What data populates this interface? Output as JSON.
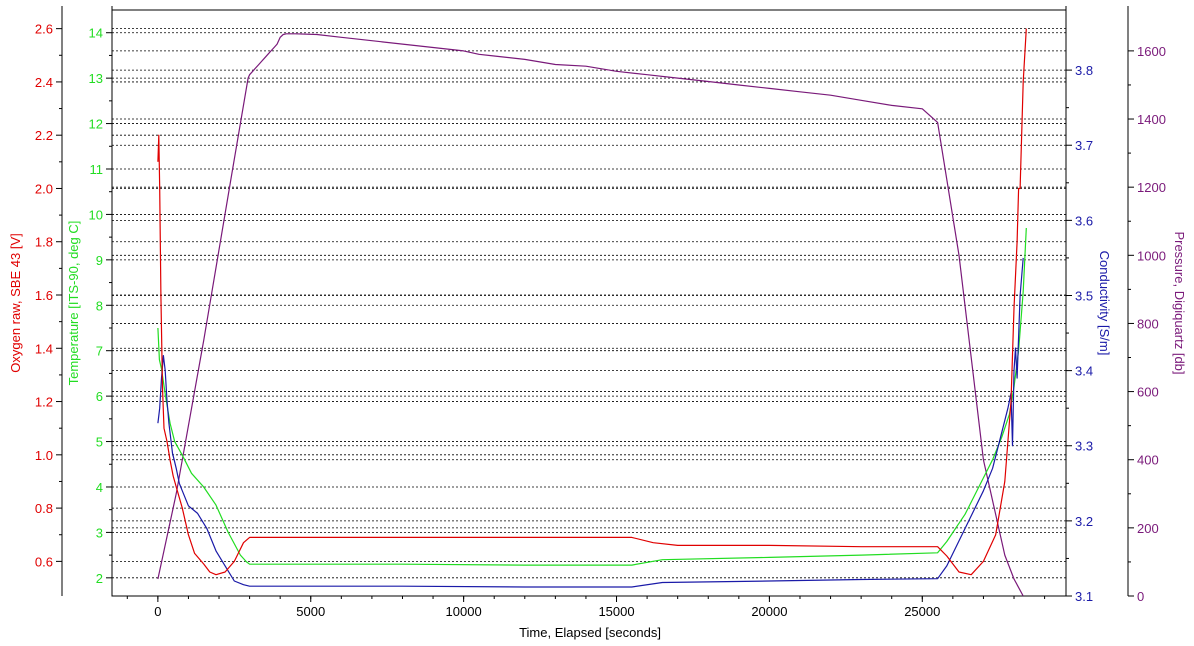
{
  "chart_data": {
    "type": "line",
    "xlabel": "Time, Elapsed [seconds]",
    "xlim": [
      -1500,
      29700
    ],
    "xticks": [
      0,
      5000,
      10000,
      15000,
      20000,
      25000
    ],
    "grid": "horizontal dashed",
    "axes": [
      {
        "id": "oxygen",
        "label": "Oxygen raw, SBE 43 [V]",
        "color": "#e00000",
        "side": "left",
        "lim": [
          0.47,
          2.67
        ],
        "ticks": [
          0.6,
          0.8,
          1.0,
          1.2,
          1.4,
          1.6,
          1.8,
          2.0,
          2.2,
          2.4,
          2.6
        ],
        "decimals": 1
      },
      {
        "id": "temp",
        "label": "Temperature [ITS-90, deg C]",
        "color": "#22dd22",
        "side": "left",
        "lim": [
          1.6,
          14.5
        ],
        "ticks": [
          2,
          3,
          4,
          5,
          6,
          7,
          8,
          9,
          10,
          11,
          12,
          13,
          14
        ],
        "decimals": 0
      },
      {
        "id": "cond",
        "label": "Conductivity [S/m]",
        "color": "#1a1aa8",
        "side": "right",
        "lim": [
          3.1,
          3.88
        ],
        "ticks": [
          3.1,
          3.2,
          3.3,
          3.4,
          3.5,
          3.6,
          3.7,
          3.8
        ],
        "decimals": 1
      },
      {
        "id": "pres",
        "label": "Pressure, Digiquartz [db]",
        "color": "#7a1a7a",
        "side": "right",
        "lim": [
          0,
          1720
        ],
        "ticks": [
          0,
          200,
          400,
          600,
          800,
          1000,
          1200,
          1400,
          1600
        ],
        "decimals": 0
      }
    ],
    "series": [
      {
        "axis": "pres",
        "color": "#7a1a7a",
        "x": [
          0,
          600,
          1500,
          2400,
          2950,
          3000,
          3100,
          3200,
          3300,
          3400,
          3500,
          3600,
          3700,
          3800,
          3900,
          4000,
          4100,
          4200,
          4300,
          4400,
          4500,
          5200,
          6000,
          7000,
          8000,
          9000,
          10000,
          10500,
          11000,
          12000,
          13000,
          14000,
          15000,
          16000,
          17000,
          18000,
          19000,
          20000,
          21000,
          22000,
          23000,
          24000,
          25000,
          25500,
          26200,
          27000,
          27700,
          28000,
          28300
        ],
        "y": [
          50,
          300,
          750,
          1230,
          1520,
          1530,
          1540,
          1550,
          1560,
          1570,
          1580,
          1590,
          1600,
          1610,
          1620,
          1640,
          1648,
          1650,
          1650,
          1650,
          1650,
          1648,
          1640,
          1630,
          1620,
          1610,
          1600,
          1590,
          1585,
          1575,
          1560,
          1555,
          1540,
          1530,
          1520,
          1510,
          1500,
          1490,
          1480,
          1470,
          1455,
          1440,
          1430,
          1390,
          1000,
          400,
          120,
          50,
          0
        ]
      },
      {
        "axis": "temp",
        "color": "#22dd22",
        "x": [
          0,
          50,
          120,
          250,
          400,
          550,
          800,
          1100,
          1500,
          1900,
          2300,
          2700,
          2900,
          3000,
          5000,
          8000,
          12000,
          15500,
          16500,
          20000,
          23000,
          25500,
          25800,
          26400,
          27000,
          27300,
          27600,
          27850,
          28000,
          28150,
          28300,
          28400
        ],
        "y": [
          7.5,
          6.8,
          6.6,
          6.0,
          5.4,
          5.0,
          4.7,
          4.3,
          4.0,
          3.6,
          3.0,
          2.5,
          2.35,
          2.3,
          2.3,
          2.3,
          2.28,
          2.28,
          2.4,
          2.45,
          2.5,
          2.55,
          2.8,
          3.4,
          4.2,
          4.6,
          5.1,
          5.6,
          6.2,
          7.0,
          8.3,
          9.7
        ]
      },
      {
        "axis": "cond",
        "color": "#1a1aa8",
        "x": [
          0,
          60,
          120,
          180,
          240,
          300,
          360,
          420,
          480,
          540,
          600,
          700,
          800,
          1000,
          1300,
          1600,
          1900,
          2200,
          2500,
          2800,
          3000,
          5000,
          8000,
          12000,
          15500,
          16500,
          20000,
          23000,
          25500,
          25800,
          26400,
          27000,
          27300,
          27550,
          27800,
          27900,
          27950,
          28000,
          28050,
          28100,
          28200,
          28300
        ],
        "y": [
          3.33,
          3.35,
          3.39,
          3.42,
          3.4,
          3.36,
          3.33,
          3.31,
          3.29,
          3.28,
          3.27,
          3.25,
          3.24,
          3.22,
          3.21,
          3.19,
          3.16,
          3.14,
          3.12,
          3.115,
          3.113,
          3.113,
          3.113,
          3.112,
          3.112,
          3.118,
          3.12,
          3.122,
          3.123,
          3.14,
          3.19,
          3.24,
          3.27,
          3.31,
          3.35,
          3.37,
          3.3,
          3.4,
          3.43,
          3.39,
          3.5,
          3.55
        ]
      },
      {
        "axis": "oxygen",
        "color": "#e00000",
        "x": [
          0,
          30,
          60,
          100,
          150,
          200,
          300,
          400,
          500,
          600,
          800,
          1000,
          1200,
          1500,
          1700,
          1900,
          2200,
          2500,
          2800,
          3000,
          5000,
          8000,
          12000,
          15500,
          16200,
          17000,
          20000,
          23000,
          25500,
          25800,
          26200,
          26600,
          27000,
          27400,
          27700,
          27900,
          28000,
          28100,
          28150,
          28200,
          28300,
          28400
        ],
        "y": [
          2.1,
          2.2,
          2.0,
          1.6,
          1.25,
          1.1,
          1.05,
          0.98,
          0.92,
          0.88,
          0.8,
          0.7,
          0.63,
          0.59,
          0.56,
          0.55,
          0.56,
          0.6,
          0.67,
          0.69,
          0.69,
          0.69,
          0.69,
          0.69,
          0.67,
          0.66,
          0.66,
          0.655,
          0.655,
          0.62,
          0.56,
          0.55,
          0.6,
          0.7,
          0.9,
          1.2,
          1.55,
          1.8,
          2.0,
          2.0,
          2.4,
          2.6
        ]
      }
    ]
  }
}
